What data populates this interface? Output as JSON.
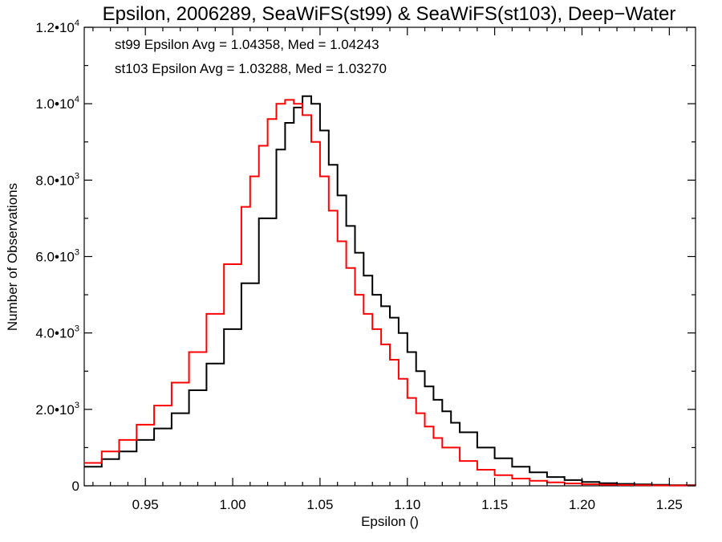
{
  "chart_data": {
    "type": "line",
    "title": "Epsilon, 2006289, SeaWiFS(st99) & SeaWiFS(st103), Deep−Water",
    "xlabel": "Epsilon ()",
    "ylabel": "Number of Observations",
    "xlim": [
      0.915,
      1.265
    ],
    "ylim": [
      0,
      12000
    ],
    "x_ticks": [
      {
        "value": 0.95,
        "label": "0.95"
      },
      {
        "value": 1.0,
        "label": "1.00"
      },
      {
        "value": 1.05,
        "label": "1.05"
      },
      {
        "value": 1.1,
        "label": "1.10"
      },
      {
        "value": 1.15,
        "label": "1.15"
      },
      {
        "value": 1.2,
        "label": "1.20"
      },
      {
        "value": 1.25,
        "label": "1.25"
      }
    ],
    "y_ticks": [
      {
        "value": 0,
        "mantissa": "0",
        "exponent": ""
      },
      {
        "value": 2000,
        "mantissa": "2.0•10",
        "exponent": "3"
      },
      {
        "value": 4000,
        "mantissa": "4.0•10",
        "exponent": "3"
      },
      {
        "value": 6000,
        "mantissa": "6.0•10",
        "exponent": "3"
      },
      {
        "value": 8000,
        "mantissa": "8.0•10",
        "exponent": "3"
      },
      {
        "value": 10000,
        "mantissa": "1.0•10",
        "exponent": "4"
      },
      {
        "value": 12000,
        "mantissa": "1.2•10",
        "exponent": "4"
      }
    ],
    "annotations": [
      {
        "text": "st99 Epsilon Avg = 1.04358, Med = 1.04243",
        "color": "#000000"
      },
      {
        "text": "st103 Epsilon Avg = 1.03288, Med = 1.03270",
        "color": "#ff0000"
      }
    ],
    "series": [
      {
        "color": "#000000",
        "x": [
          0.915,
          0.925,
          0.935,
          0.945,
          0.955,
          0.965,
          0.975,
          0.985,
          0.995,
          1.005,
          1.015,
          1.025,
          1.03,
          1.035,
          1.04,
          1.045,
          1.05,
          1.055,
          1.06,
          1.065,
          1.07,
          1.075,
          1.08,
          1.085,
          1.09,
          1.095,
          1.1,
          1.105,
          1.11,
          1.115,
          1.12,
          1.125,
          1.13,
          1.14,
          1.15,
          1.16,
          1.17,
          1.18,
          1.19,
          1.2,
          1.21,
          1.22,
          1.23,
          1.24,
          1.25,
          1.265
        ],
        "y": [
          500,
          700,
          900,
          1200,
          1500,
          1900,
          2500,
          3200,
          4100,
          5300,
          7000,
          8800,
          9500,
          9900,
          10200,
          10000,
          9300,
          8400,
          7600,
          6800,
          6100,
          5500,
          5000,
          4700,
          4400,
          4000,
          3500,
          3000,
          2600,
          2250,
          1950,
          1650,
          1400,
          1000,
          720,
          500,
          350,
          230,
          150,
          100,
          70,
          50,
          35,
          25,
          15,
          10
        ]
      },
      {
        "color": "#ff0000",
        "x": [
          0.915,
          0.925,
          0.935,
          0.945,
          0.955,
          0.965,
          0.975,
          0.985,
          0.995,
          1.005,
          1.01,
          1.015,
          1.02,
          1.025,
          1.03,
          1.035,
          1.04,
          1.045,
          1.05,
          1.055,
          1.06,
          1.065,
          1.07,
          1.075,
          1.08,
          1.085,
          1.09,
          1.095,
          1.1,
          1.105,
          1.11,
          1.115,
          1.12,
          1.13,
          1.14,
          1.15,
          1.16,
          1.17,
          1.18,
          1.19,
          1.2,
          1.21,
          1.22,
          1.23,
          1.24,
          1.25,
          1.265
        ],
        "y": [
          600,
          900,
          1200,
          1600,
          2100,
          2700,
          3500,
          4500,
          5800,
          7300,
          8100,
          8900,
          9600,
          10000,
          10100,
          10000,
          9700,
          9000,
          8100,
          7200,
          6400,
          5700,
          5000,
          4500,
          4100,
          3700,
          3300,
          2800,
          2300,
          1900,
          1550,
          1250,
          1000,
          650,
          420,
          280,
          190,
          130,
          90,
          60,
          40,
          30,
          20,
          15,
          10,
          8,
          5
        ]
      }
    ]
  }
}
